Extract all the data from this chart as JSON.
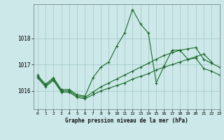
{
  "title": "Graphe pression niveau de la mer (hPa)",
  "background_color": "#cce8e8",
  "grid_color": "#aacccc",
  "line_color": "#1a6b2a",
  "x_min": -0.5,
  "x_max": 23,
  "y_min": 1015.3,
  "y_max": 1019.3,
  "yticks": [
    1016,
    1017,
    1018
  ],
  "xticks": [
    0,
    1,
    2,
    3,
    4,
    5,
    6,
    7,
    8,
    9,
    10,
    11,
    12,
    13,
    14,
    15,
    16,
    17,
    18,
    19,
    20,
    21,
    22,
    23
  ],
  "line1_x": [
    0,
    1,
    2,
    3,
    4,
    5,
    6,
    7,
    8,
    9,
    10,
    11,
    12,
    13,
    14,
    15,
    16,
    17,
    18,
    19,
    20,
    21,
    22
  ],
  "line1_y": [
    1016.6,
    1016.25,
    1016.5,
    1016.05,
    1016.05,
    1015.85,
    1015.8,
    1016.5,
    1016.9,
    1017.1,
    1017.7,
    1018.2,
    1019.1,
    1018.55,
    1018.2,
    1016.3,
    1016.95,
    1017.55,
    1017.55,
    1017.2,
    1017.3,
    1017.4,
    1017.1
  ],
  "line2_x": [
    0,
    1,
    2,
    3,
    4,
    5,
    6,
    7,
    8,
    9,
    10,
    11,
    12,
    13,
    14,
    15,
    16,
    17,
    18,
    19,
    20,
    21,
    22,
    23
  ],
  "line2_y": [
    1016.55,
    1016.2,
    1016.45,
    1016.0,
    1016.0,
    1015.8,
    1015.75,
    1015.95,
    1016.15,
    1016.3,
    1016.45,
    1016.6,
    1016.75,
    1016.9,
    1017.05,
    1017.2,
    1017.35,
    1017.45,
    1017.55,
    1017.6,
    1017.65,
    1017.2,
    1017.05,
    1016.9
  ],
  "line3_x": [
    0,
    1,
    2,
    3,
    4,
    5,
    6,
    7,
    8,
    9,
    10,
    11,
    12,
    13,
    14,
    15,
    16,
    17,
    18,
    19,
    20,
    21,
    22,
    23
  ],
  "line3_y": [
    1016.5,
    1016.15,
    1016.4,
    1015.95,
    1015.95,
    1015.75,
    1015.7,
    1015.85,
    1016.0,
    1016.1,
    1016.2,
    1016.3,
    1016.45,
    1016.55,
    1016.65,
    1016.8,
    1016.9,
    1017.0,
    1017.1,
    1017.2,
    1017.25,
    1016.85,
    1016.75,
    1016.6
  ]
}
